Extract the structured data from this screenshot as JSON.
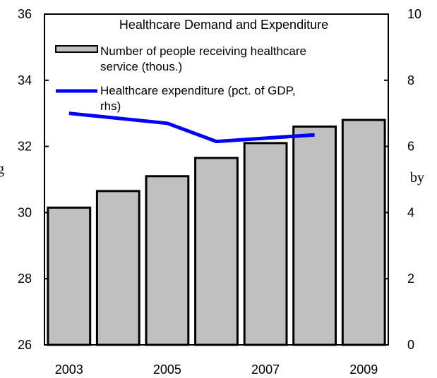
{
  "chart_data": {
    "type": "bar",
    "title": "Healthcare Demand and Expenditure",
    "categories": [
      "2003",
      "2004",
      "2005",
      "2006",
      "2007",
      "2008",
      "2009"
    ],
    "x_tick_labels": [
      "2003",
      "2005",
      "2007",
      "2009"
    ],
    "series": [
      {
        "name": "Number of people receiving healthcare service (thous.)",
        "type": "bar",
        "axis": "left",
        "color": "#c0c0c0",
        "values": [
          30.15,
          30.65,
          31.1,
          31.65,
          32.1,
          32.6,
          32.8
        ]
      },
      {
        "name": "Healthcare expenditure (pct. of GDP, rhs)",
        "type": "line",
        "axis": "right",
        "color": "#0000ff",
        "x": [
          "2003",
          "2005",
          "2006",
          "2008"
        ],
        "values": [
          7.0,
          6.7,
          6.15,
          6.35
        ]
      }
    ],
    "ylim_left": [
      26,
      36
    ],
    "yticks_left": [
      "26",
      "28",
      "30",
      "32",
      "34",
      "36"
    ],
    "ylim_right": [
      0,
      10
    ],
    "yticks_right": [
      "0",
      "2",
      "4",
      "6",
      "8",
      "10"
    ],
    "grid": false,
    "legend": "top-left inside"
  },
  "fragments": {
    "left": "g",
    "right": "by"
  }
}
